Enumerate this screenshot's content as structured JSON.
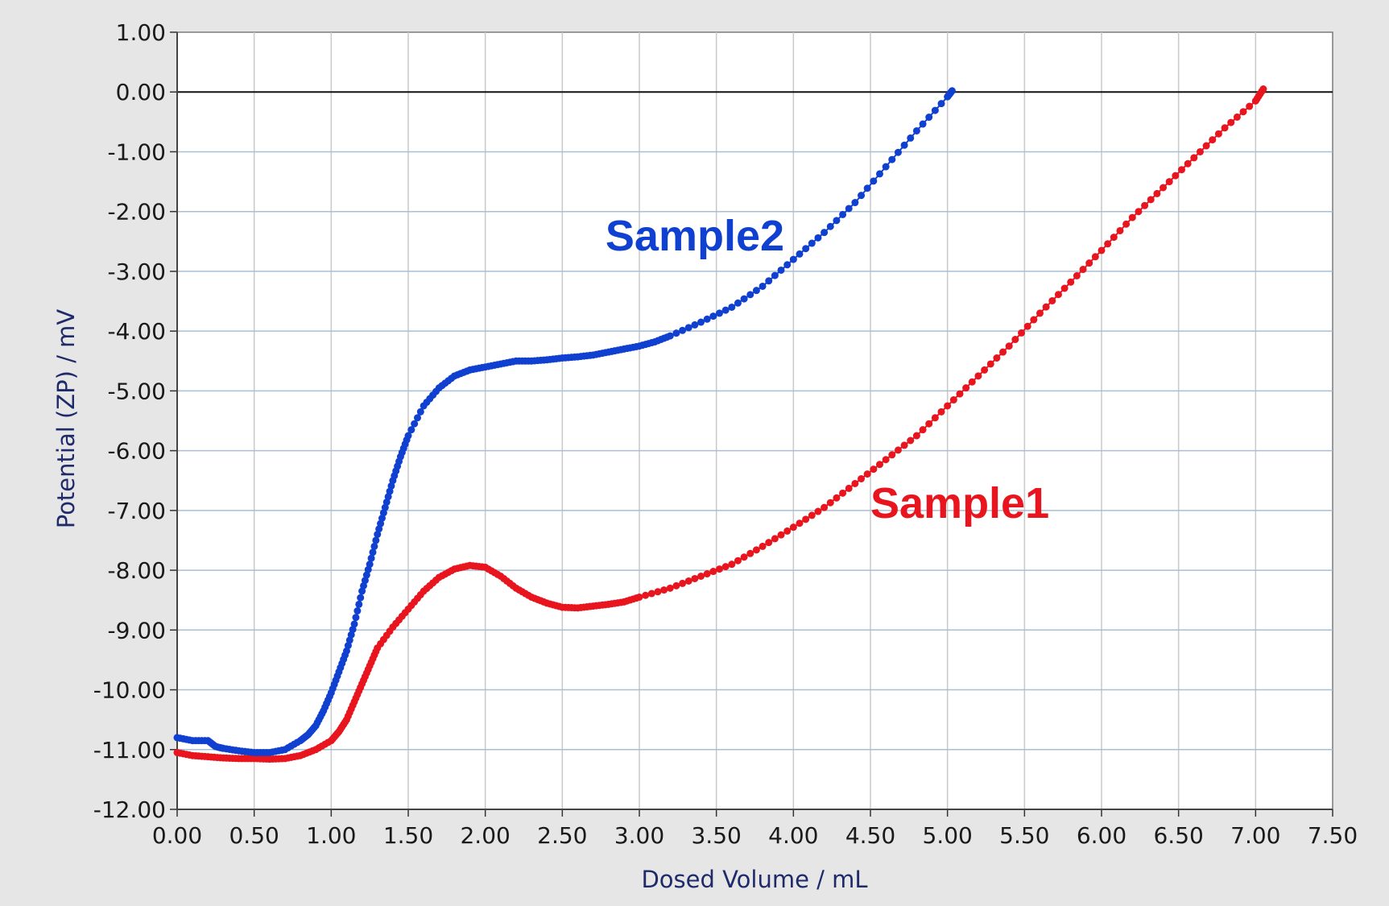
{
  "chart_data": {
    "type": "scatter",
    "xlabel": "Dosed Volume / mL",
    "ylabel": "Potential (ZP) / mV",
    "xlim": [
      0,
      7.5
    ],
    "ylim": [
      -12,
      1
    ],
    "x_ticks": [
      "0.00",
      "0.50",
      "1.00",
      "1.50",
      "2.00",
      "2.50",
      "3.00",
      "3.50",
      "4.00",
      "4.50",
      "5.00",
      "5.50",
      "6.00",
      "6.50",
      "7.00",
      "7.50"
    ],
    "y_ticks": [
      "1.00",
      "0.00",
      "-1.00",
      "-2.00",
      "-3.00",
      "-4.00",
      "-5.00",
      "-6.00",
      "-7.00",
      "-8.00",
      "-9.00",
      "-10.00",
      "-11.00",
      "-12.00"
    ],
    "grid": true,
    "zero_line": true,
    "series": [
      {
        "name": "Sample1",
        "color": "#e8141e",
        "points": [
          [
            0.0,
            -11.05
          ],
          [
            0.1,
            -11.1
          ],
          [
            0.2,
            -11.12
          ],
          [
            0.3,
            -11.14
          ],
          [
            0.4,
            -11.15
          ],
          [
            0.5,
            -11.15
          ],
          [
            0.6,
            -11.16
          ],
          [
            0.7,
            -11.15
          ],
          [
            0.8,
            -11.1
          ],
          [
            0.9,
            -11.0
          ],
          [
            1.0,
            -10.85
          ],
          [
            1.05,
            -10.7
          ],
          [
            1.1,
            -10.5
          ],
          [
            1.15,
            -10.2
          ],
          [
            1.2,
            -9.9
          ],
          [
            1.25,
            -9.6
          ],
          [
            1.3,
            -9.3
          ],
          [
            1.4,
            -8.95
          ],
          [
            1.5,
            -8.65
          ],
          [
            1.6,
            -8.35
          ],
          [
            1.7,
            -8.12
          ],
          [
            1.8,
            -7.98
          ],
          [
            1.9,
            -7.92
          ],
          [
            2.0,
            -7.95
          ],
          [
            2.1,
            -8.1
          ],
          [
            2.2,
            -8.3
          ],
          [
            2.3,
            -8.45
          ],
          [
            2.4,
            -8.55
          ],
          [
            2.5,
            -8.62
          ],
          [
            2.6,
            -8.63
          ],
          [
            2.7,
            -8.6
          ],
          [
            2.8,
            -8.57
          ],
          [
            2.9,
            -8.53
          ],
          [
            3.0,
            -8.45
          ],
          [
            3.2,
            -8.3
          ],
          [
            3.4,
            -8.1
          ],
          [
            3.6,
            -7.9
          ],
          [
            3.8,
            -7.6
          ],
          [
            4.0,
            -7.28
          ],
          [
            4.2,
            -6.95
          ],
          [
            4.4,
            -6.55
          ],
          [
            4.6,
            -6.15
          ],
          [
            4.8,
            -5.75
          ],
          [
            5.0,
            -5.25
          ],
          [
            5.2,
            -4.75
          ],
          [
            5.4,
            -4.25
          ],
          [
            5.6,
            -3.7
          ],
          [
            5.8,
            -3.18
          ],
          [
            6.0,
            -2.65
          ],
          [
            6.2,
            -2.1
          ],
          [
            6.4,
            -1.6
          ],
          [
            6.6,
            -1.1
          ],
          [
            6.8,
            -0.6
          ],
          [
            7.0,
            -0.15
          ],
          [
            7.05,
            0.05
          ]
        ]
      },
      {
        "name": "Sample2",
        "color": "#1040d0",
        "points": [
          [
            0.0,
            -10.8
          ],
          [
            0.1,
            -10.85
          ],
          [
            0.2,
            -10.85
          ],
          [
            0.25,
            -10.95
          ],
          [
            0.3,
            -10.98
          ],
          [
            0.4,
            -11.02
          ],
          [
            0.5,
            -11.05
          ],
          [
            0.6,
            -11.05
          ],
          [
            0.7,
            -11.0
          ],
          [
            0.8,
            -10.85
          ],
          [
            0.85,
            -10.75
          ],
          [
            0.9,
            -10.6
          ],
          [
            0.95,
            -10.35
          ],
          [
            1.0,
            -10.05
          ],
          [
            1.05,
            -9.7
          ],
          [
            1.1,
            -9.35
          ],
          [
            1.15,
            -8.9
          ],
          [
            1.2,
            -8.35
          ],
          [
            1.25,
            -7.9
          ],
          [
            1.3,
            -7.4
          ],
          [
            1.35,
            -6.95
          ],
          [
            1.4,
            -6.5
          ],
          [
            1.45,
            -6.1
          ],
          [
            1.5,
            -5.75
          ],
          [
            1.6,
            -5.25
          ],
          [
            1.7,
            -4.95
          ],
          [
            1.8,
            -4.75
          ],
          [
            1.9,
            -4.65
          ],
          [
            2.0,
            -4.6
          ],
          [
            2.1,
            -4.55
          ],
          [
            2.2,
            -4.5
          ],
          [
            2.3,
            -4.5
          ],
          [
            2.4,
            -4.48
          ],
          [
            2.5,
            -4.45
          ],
          [
            2.6,
            -4.43
          ],
          [
            2.7,
            -4.4
          ],
          [
            2.8,
            -4.35
          ],
          [
            2.9,
            -4.3
          ],
          [
            3.0,
            -4.25
          ],
          [
            3.1,
            -4.18
          ],
          [
            3.2,
            -4.08
          ],
          [
            3.4,
            -3.85
          ],
          [
            3.6,
            -3.6
          ],
          [
            3.8,
            -3.25
          ],
          [
            4.0,
            -2.8
          ],
          [
            4.2,
            -2.35
          ],
          [
            4.4,
            -1.85
          ],
          [
            4.6,
            -1.25
          ],
          [
            4.8,
            -0.65
          ],
          [
            5.0,
            -0.08
          ],
          [
            5.03,
            0.02
          ]
        ]
      }
    ],
    "annotations": [
      {
        "text": "Sample2",
        "x": 2.78,
        "y": -2.65,
        "color": "#1040d0"
      },
      {
        "text": "Sample1",
        "x": 4.5,
        "y": -7.12,
        "color": "#e8141e"
      }
    ]
  }
}
